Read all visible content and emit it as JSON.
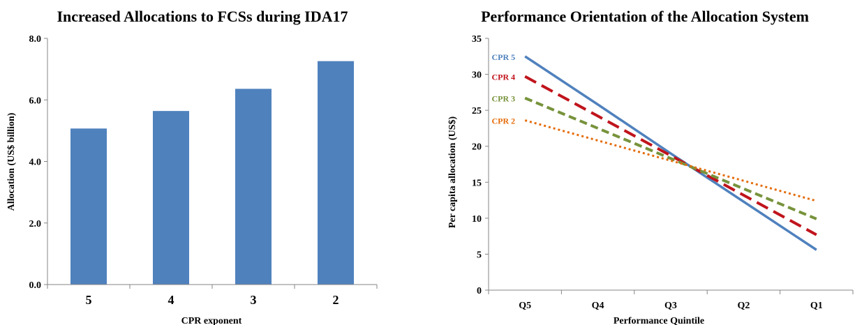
{
  "chart_data": [
    {
      "type": "bar",
      "title": "Increased Allocations to FCSs during IDA17",
      "xlabel": "CPR exponent",
      "ylabel": "Allocation (US$ billion)",
      "categories": [
        "5",
        "4",
        "3",
        "2"
      ],
      "values": [
        5.07,
        5.64,
        6.36,
        7.26
      ],
      "ylim": [
        0,
        8
      ],
      "yticks": [
        "0.0",
        "2.0",
        "4.0",
        "6.0",
        "8.0"
      ],
      "bar_color": "#4f81bd",
      "grid": false
    },
    {
      "type": "line",
      "title": "Performance Orientation of the Allocation System",
      "xlabel": "Performance Quintile",
      "ylabel": "Per capita allocation (US$)",
      "categories": [
        "Q5",
        "Q4",
        "Q3",
        "Q2",
        "Q1"
      ],
      "ylim": [
        0,
        35
      ],
      "yticks": [
        "0",
        "5",
        "10",
        "15",
        "20",
        "25",
        "30",
        "35"
      ],
      "grid": false,
      "series": [
        {
          "name": "CPR 5",
          "values": [
            32.5,
            25.8,
            19.0,
            12.3,
            5.6
          ],
          "color": "#4f81bd",
          "style": "solid"
        },
        {
          "name": "CPR 4",
          "values": [
            29.7,
            24.2,
            18.7,
            13.2,
            7.7
          ],
          "color": "#c0141c",
          "style": "long-dash"
        },
        {
          "name": "CPR 3",
          "values": [
            26.7,
            22.5,
            18.3,
            14.1,
            9.9
          ],
          "color": "#77933c",
          "style": "dash"
        },
        {
          "name": "CPR 2",
          "values": [
            23.6,
            20.8,
            18.0,
            15.2,
            12.4
          ],
          "color": "#e46c0a",
          "style": "dot"
        }
      ]
    }
  ]
}
